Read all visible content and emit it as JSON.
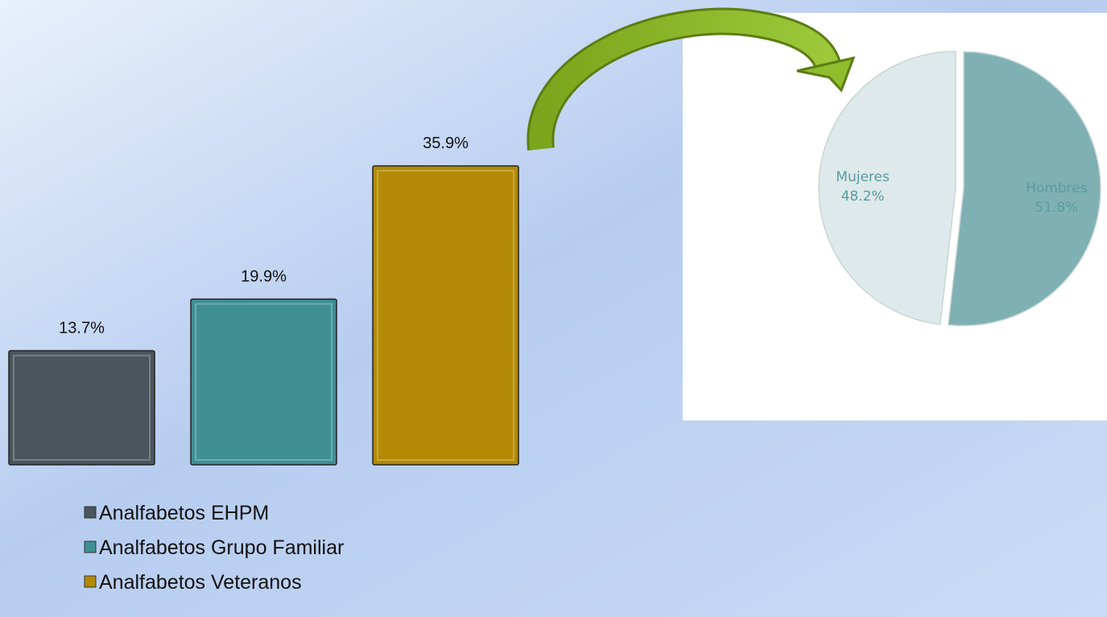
{
  "chart_data": [
    {
      "type": "bar",
      "series": [
        {
          "name": "Analfabetos EHPM",
          "color": "#4b555d",
          "values": [
            13.7
          ],
          "value_labels": [
            "13.7%"
          ]
        },
        {
          "name": "Analfabetos Grupo Familiar",
          "color": "#3f8f93",
          "values": [
            19.9
          ],
          "value_labels": [
            "19.9%"
          ]
        },
        {
          "name": "Analfabetos Veteranos",
          "color": "#b38a05",
          "values": [
            35.9
          ],
          "value_labels": [
            "35.9%"
          ]
        }
      ]
    },
    {
      "type": "pie",
      "categories": [
        "Hombres",
        "Mujeres"
      ],
      "values": [
        51.8,
        48.2
      ],
      "value_labels": [
        "51.8%",
        "48.2%"
      ],
      "colors": [
        "#7fb1b4",
        "#dde9ea"
      ]
    }
  ]
}
